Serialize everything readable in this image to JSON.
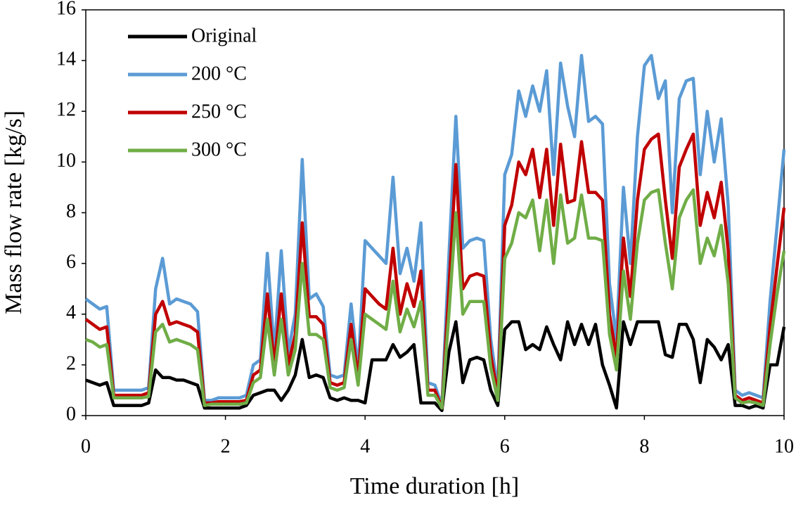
{
  "chart_data": {
    "type": "line",
    "xlabel": "Time duration [h]",
    "ylabel": "Mass flow rate [kg/s]",
    "x": [
      0,
      0.1,
      0.2,
      0.3,
      0.4,
      0.5,
      0.6,
      0.7,
      0.8,
      0.9,
      1,
      1.1,
      1.2,
      1.3,
      1.4,
      1.5,
      1.6,
      1.7,
      1.8,
      1.9,
      2,
      2.1,
      2.2,
      2.3,
      2.4,
      2.5,
      2.6,
      2.7,
      2.8,
      2.9,
      3,
      3.1,
      3.2,
      3.3,
      3.4,
      3.5,
      3.6,
      3.7,
      3.8,
      3.9,
      4,
      4.1,
      4.2,
      4.3,
      4.4,
      4.5,
      4.6,
      4.7,
      4.8,
      4.9,
      5,
      5.1,
      5.2,
      5.3,
      5.4,
      5.5,
      5.6,
      5.7,
      5.8,
      5.9,
      6,
      6.1,
      6.2,
      6.3,
      6.4,
      6.5,
      6.6,
      6.7,
      6.8,
      6.9,
      7,
      7.1,
      7.2,
      7.3,
      7.4,
      7.5,
      7.6,
      7.7,
      7.8,
      7.9,
      8,
      8.1,
      8.2,
      8.3,
      8.4,
      8.5,
      8.6,
      8.7,
      8.8,
      8.9,
      9,
      9.1,
      9.2,
      9.3,
      9.4,
      9.5,
      9.6,
      9.7,
      9.8,
      9.9,
      10
    ],
    "series": [
      {
        "name": "Original",
        "color": "#000000",
        "values": [
          1.4,
          1.3,
          1.2,
          1.3,
          0.4,
          0.4,
          0.4,
          0.4,
          0.4,
          0.5,
          1.8,
          1.5,
          1.5,
          1.4,
          1.4,
          1.3,
          1.2,
          0.3,
          0.3,
          0.3,
          0.3,
          0.3,
          0.3,
          0.4,
          0.8,
          0.9,
          1.0,
          1.0,
          0.6,
          1.0,
          1.6,
          3.0,
          1.5,
          1.6,
          1.5,
          0.7,
          0.6,
          0.7,
          0.6,
          0.6,
          0.5,
          2.2,
          2.2,
          2.2,
          2.8,
          2.3,
          2.5,
          2.8,
          0.5,
          0.5,
          0.5,
          0.2,
          2.5,
          3.7,
          1.3,
          2.2,
          2.3,
          2.2,
          1.0,
          0.4,
          3.4,
          3.7,
          3.7,
          2.6,
          2.8,
          2.6,
          3.5,
          2.8,
          2.2,
          3.7,
          2.8,
          3.6,
          2.8,
          3.6,
          2.0,
          1.2,
          0.3,
          3.7,
          2.8,
          3.7,
          3.7,
          3.7,
          3.7,
          2.4,
          2.3,
          3.6,
          3.6,
          3.0,
          1.3,
          3.0,
          2.7,
          2.2,
          2.8,
          0.4,
          0.4,
          0.3,
          0.4,
          0.3,
          2.0,
          2.0,
          3.5
        ]
      },
      {
        "name": "200 °C",
        "color": "#5b9bd5",
        "values": [
          4.6,
          4.4,
          4.2,
          4.3,
          1.0,
          1.0,
          1.0,
          1.0,
          1.0,
          1.1,
          5.0,
          6.2,
          4.4,
          4.6,
          4.5,
          4.4,
          4.1,
          0.6,
          0.6,
          0.7,
          0.7,
          0.7,
          0.7,
          0.8,
          2.0,
          2.2,
          6.4,
          2.5,
          6.5,
          2.5,
          4.0,
          10.1,
          4.6,
          4.8,
          4.3,
          1.6,
          1.5,
          1.6,
          4.4,
          1.8,
          6.9,
          6.6,
          6.3,
          6.0,
          9.4,
          5.6,
          6.6,
          5.3,
          7.6,
          1.3,
          1.2,
          0.4,
          6.3,
          11.8,
          6.6,
          6.9,
          7.0,
          6.9,
          3.0,
          1.0,
          9.5,
          10.3,
          12.8,
          11.8,
          13.0,
          12.0,
          13.6,
          9.5,
          13.9,
          12.2,
          11.0,
          14.2,
          11.6,
          11.8,
          11.5,
          5.2,
          3.0,
          9.0,
          6.0,
          11.0,
          13.8,
          14.2,
          12.5,
          13.2,
          8.0,
          12.5,
          13.2,
          13.3,
          9.5,
          12.0,
          10.0,
          11.7,
          8.3,
          1.0,
          0.8,
          0.9,
          0.8,
          0.7,
          4.5,
          7.5,
          10.5
        ]
      },
      {
        "name": "250 °C",
        "color": "#c00000",
        "values": [
          3.8,
          3.6,
          3.4,
          3.5,
          0.8,
          0.8,
          0.8,
          0.8,
          0.8,
          0.9,
          4.0,
          4.5,
          3.6,
          3.7,
          3.6,
          3.5,
          3.3,
          0.5,
          0.5,
          0.55,
          0.55,
          0.55,
          0.55,
          0.6,
          1.6,
          1.8,
          4.8,
          2.0,
          4.8,
          2.0,
          3.2,
          7.6,
          3.9,
          3.9,
          3.6,
          1.3,
          1.2,
          1.3,
          3.6,
          1.5,
          5.0,
          4.7,
          4.4,
          4.2,
          6.6,
          4.0,
          5.2,
          4.3,
          5.7,
          1.0,
          1.0,
          0.3,
          5.0,
          9.9,
          5.0,
          5.5,
          5.6,
          5.5,
          2.4,
          0.8,
          7.5,
          8.3,
          10.0,
          9.5,
          10.5,
          8.6,
          10.5,
          7.5,
          10.7,
          8.4,
          8.5,
          10.8,
          8.8,
          8.8,
          8.5,
          4.0,
          2.3,
          7.0,
          4.7,
          8.5,
          10.5,
          10.9,
          11.1,
          8.5,
          6.2,
          9.8,
          10.5,
          11.1,
          7.5,
          8.8,
          7.8,
          9.2,
          6.5,
          0.8,
          0.6,
          0.7,
          0.6,
          0.5,
          3.5,
          5.9,
          8.2
        ]
      },
      {
        "name": "300 °C",
        "color": "#70ad47",
        "values": [
          3.0,
          2.9,
          2.7,
          2.8,
          0.7,
          0.7,
          0.7,
          0.7,
          0.7,
          0.75,
          3.3,
          3.6,
          2.9,
          3.0,
          2.9,
          2.8,
          2.6,
          0.4,
          0.45,
          0.45,
          0.45,
          0.45,
          0.45,
          0.5,
          1.3,
          1.5,
          3.8,
          1.6,
          3.8,
          1.6,
          2.6,
          6.0,
          3.2,
          3.2,
          3.0,
          1.1,
          1.0,
          1.1,
          3.0,
          1.2,
          4.0,
          3.8,
          3.6,
          3.4,
          5.3,
          3.3,
          4.2,
          3.5,
          4.5,
          0.8,
          0.8,
          0.3,
          4.0,
          8.0,
          4.0,
          4.5,
          4.5,
          4.5,
          1.9,
          0.6,
          6.2,
          6.8,
          8.0,
          7.8,
          8.5,
          6.5,
          8.5,
          6.0,
          8.7,
          6.8,
          7.0,
          8.7,
          7.0,
          7.0,
          6.9,
          3.2,
          1.8,
          5.7,
          3.8,
          6.8,
          8.5,
          8.8,
          8.9,
          6.8,
          5.0,
          7.8,
          8.5,
          8.9,
          6.0,
          7.0,
          6.3,
          7.5,
          5.2,
          0.7,
          0.5,
          0.55,
          0.5,
          0.4,
          2.8,
          4.8,
          6.5
        ]
      }
    ],
    "xlim": [
      0,
      10
    ],
    "xticks": [
      0,
      2,
      4,
      6,
      8,
      10
    ],
    "ylim": [
      0,
      16
    ],
    "yticks": [
      0,
      2,
      4,
      6,
      8,
      10,
      12,
      14,
      16
    ],
    "grid": false,
    "legend": "upper left"
  }
}
